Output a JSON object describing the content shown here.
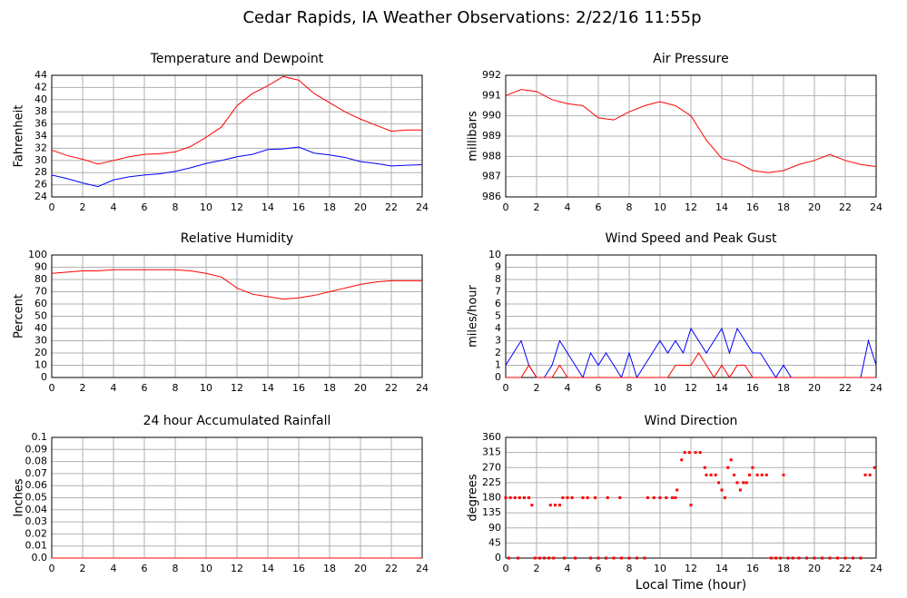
{
  "title": "Cedar Rapids, IA Weather Observations: 2/22/16 11:55p",
  "chart_data": [
    {
      "type": "line",
      "title": "Temperature and Dewpoint",
      "ylabel": "Fahrenheit",
      "x": [
        0,
        1,
        2,
        3,
        4,
        5,
        6,
        7,
        8,
        9,
        10,
        11,
        12,
        13,
        14,
        15,
        16,
        17,
        18,
        19,
        20,
        21,
        22,
        23,
        24
      ],
      "series": [
        {
          "color": "#ff0000",
          "values": [
            31.7,
            30.8,
            30.2,
            29.4,
            30.0,
            30.6,
            31.0,
            31.1,
            31.4,
            32.3,
            33.8,
            35.5,
            39.0,
            41.0,
            42.3,
            43.8,
            43.2,
            41.0,
            39.5,
            38.0,
            36.8,
            35.8,
            34.8,
            35.0,
            35.0
          ]
        },
        {
          "color": "#0000ff",
          "values": [
            27.6,
            27.0,
            26.3,
            25.7,
            26.8,
            27.3,
            27.6,
            27.8,
            28.2,
            28.8,
            29.5,
            30.0,
            30.6,
            31.0,
            31.8,
            31.9,
            32.2,
            31.2,
            30.9,
            30.5,
            29.8,
            29.5,
            29.1,
            29.2,
            29.3
          ]
        }
      ],
      "xlim": [
        0,
        24
      ],
      "xticks": [
        0,
        2,
        4,
        6,
        8,
        10,
        12,
        14,
        16,
        18,
        20,
        22,
        24
      ],
      "ylim": [
        24,
        44
      ],
      "yticks": [
        24,
        26,
        28,
        30,
        32,
        34,
        36,
        38,
        40,
        42,
        44
      ],
      "grid": true
    },
    {
      "type": "line",
      "title": "Air Pressure",
      "ylabel": "millibars",
      "x": [
        0,
        1,
        2,
        3,
        4,
        5,
        6,
        7,
        8,
        9,
        10,
        11,
        12,
        13,
        14,
        15,
        16,
        17,
        18,
        19,
        20,
        21,
        22,
        23,
        24
      ],
      "series": [
        {
          "color": "#ff0000",
          "values": [
            991.0,
            991.3,
            991.2,
            990.8,
            990.6,
            990.5,
            989.9,
            989.8,
            990.2,
            990.5,
            990.7,
            990.5,
            990.0,
            988.8,
            987.9,
            987.7,
            987.3,
            987.2,
            987.3,
            987.6,
            987.8,
            988.1,
            987.8,
            987.6,
            987.5
          ]
        }
      ],
      "xlim": [
        0,
        24
      ],
      "xticks": [
        0,
        2,
        4,
        6,
        8,
        10,
        12,
        14,
        16,
        18,
        20,
        22,
        24
      ],
      "ylim": [
        986,
        992
      ],
      "yticks": [
        986,
        987,
        988,
        989,
        990,
        991,
        992
      ],
      "grid": true
    },
    {
      "type": "line",
      "title": "Relative Humidity",
      "ylabel": "Percent",
      "x": [
        0,
        1,
        2,
        3,
        4,
        5,
        6,
        7,
        8,
        9,
        10,
        11,
        12,
        13,
        14,
        15,
        16,
        17,
        18,
        19,
        20,
        21,
        22,
        23,
        24
      ],
      "series": [
        {
          "color": "#ff0000",
          "values": [
            85,
            86,
            87,
            87,
            88,
            88,
            88,
            88,
            88,
            87,
            85,
            82,
            73,
            68,
            66,
            64,
            65,
            67,
            70,
            73,
            76,
            78,
            79,
            79,
            79
          ]
        }
      ],
      "xlim": [
        0,
        24
      ],
      "xticks": [
        0,
        2,
        4,
        6,
        8,
        10,
        12,
        14,
        16,
        18,
        20,
        22,
        24
      ],
      "ylim": [
        0,
        100
      ],
      "yticks": [
        0,
        10,
        20,
        30,
        40,
        50,
        60,
        70,
        80,
        90,
        100
      ],
      "grid": true
    },
    {
      "type": "line",
      "title": "Wind Speed and Peak Gust",
      "ylabel": "miles/hour",
      "x": [
        0,
        0.5,
        1,
        1.5,
        2,
        2.5,
        3,
        3.5,
        4,
        4.5,
        5,
        5.5,
        6,
        6.5,
        7,
        7.5,
        8,
        8.5,
        9,
        9.5,
        10,
        10.5,
        11,
        11.5,
        12,
        12.5,
        13,
        13.5,
        14,
        14.5,
        15,
        15.5,
        16,
        16.5,
        17,
        17.5,
        18,
        18.5,
        19,
        19.5,
        20,
        20.5,
        21,
        21.5,
        22,
        22.5,
        23,
        23.5,
        24
      ],
      "series": [
        {
          "color": "#0000ff",
          "values": [
            1,
            2,
            3,
            1,
            0,
            0,
            1,
            3,
            2,
            1,
            0,
            2,
            1,
            2,
            1,
            0,
            2,
            0,
            1,
            2,
            3,
            2,
            3,
            2,
            4,
            3,
            2,
            3,
            4,
            2,
            4,
            3,
            2,
            2,
            1,
            0,
            1,
            0,
            0,
            0,
            0,
            0,
            0,
            0,
            0,
            0,
            0,
            3,
            1
          ]
        },
        {
          "color": "#ff0000",
          "values": [
            0,
            0,
            0,
            1,
            0,
            0,
            0,
            1,
            0,
            0,
            0,
            0,
            0,
            0,
            0,
            0,
            0,
            0,
            0,
            0,
            0,
            0,
            1,
            1,
            1,
            2,
            1,
            0,
            1,
            0,
            1,
            1,
            0,
            0,
            0,
            0,
            0,
            0,
            0,
            0,
            0,
            0,
            0,
            0,
            0,
            0,
            0,
            0,
            0
          ]
        }
      ],
      "xlim": [
        0,
        24
      ],
      "xticks": [
        0,
        2,
        4,
        6,
        8,
        10,
        12,
        14,
        16,
        18,
        20,
        22,
        24
      ],
      "ylim": [
        0,
        10
      ],
      "yticks": [
        0,
        1,
        2,
        3,
        4,
        5,
        6,
        7,
        8,
        9,
        10
      ],
      "grid": true
    },
    {
      "type": "line",
      "title": "24 hour Accumulated Rainfall",
      "ylabel": "Inches",
      "x": [
        0,
        24
      ],
      "series": [
        {
          "color": "#ff0000",
          "values": [
            0,
            0
          ]
        }
      ],
      "xlim": [
        0,
        24
      ],
      "xticks": [
        0,
        2,
        4,
        6,
        8,
        10,
        12,
        14,
        16,
        18,
        20,
        22,
        24
      ],
      "ylim": [
        0,
        0.1
      ],
      "yticks": [
        {
          "value": 0,
          "label": "0.0"
        },
        0.01,
        0.02,
        0.03,
        0.04,
        0.05,
        0.06,
        0.07,
        0.08,
        0.09,
        0.1
      ],
      "grid": true
    },
    {
      "type": "scatter",
      "title": "Wind Direction",
      "ylabel": "degrees",
      "xlabel": "Local Time (hour)",
      "x": [
        0,
        0.3,
        0.6,
        0.9,
        1.2,
        1.5,
        0.2,
        0.8,
        1.7,
        1.9,
        2.2,
        2.5,
        2.8,
        3.1,
        2.9,
        3.2,
        3.5,
        3.7,
        4.0,
        4.3,
        3.8,
        4.5,
        5.0,
        5.3,
        5.5,
        6.0,
        6.5,
        7.0,
        7.5,
        8.0,
        5.8,
        6.6,
        7.4,
        8.5,
        9.0,
        9.2,
        9.6,
        10.0,
        10.4,
        10.8,
        11.0,
        11.1,
        11.4,
        11.6,
        11.9,
        12.0,
        12.3,
        12.6,
        12.9,
        13.0,
        13.3,
        13.6,
        13.8,
        14.0,
        14.2,
        14.4,
        14.6,
        14.8,
        15.0,
        15.2,
        15.4,
        15.6,
        15.8,
        16.0,
        16.3,
        16.6,
        16.9,
        17.2,
        17.5,
        17.8,
        18.0,
        18.3,
        18.6,
        19.0,
        19.5,
        20.0,
        20.5,
        21.0,
        21.5,
        22.0,
        22.5,
        23.0,
        23.3,
        23.6,
        23.9
      ],
      "values": [
        180,
        180,
        180,
        180,
        180,
        180,
        0,
        0,
        158,
        0,
        0,
        0,
        0,
        0,
        158,
        158,
        158,
        180,
        180,
        180,
        0,
        0,
        180,
        180,
        0,
        0,
        0,
        0,
        0,
        0,
        180,
        180,
        180,
        0,
        0,
        180,
        180,
        180,
        180,
        180,
        180,
        203,
        293,
        315,
        315,
        158,
        315,
        315,
        270,
        248,
        248,
        248,
        225,
        203,
        180,
        270,
        293,
        248,
        225,
        203,
        225,
        225,
        248,
        270,
        248,
        248,
        248,
        0,
        0,
        0,
        248,
        0,
        0,
        0,
        0,
        0,
        0,
        0,
        0,
        0,
        0,
        0,
        248,
        248,
        270
      ],
      "color": "#ff0000",
      "xlim": [
        0,
        24
      ],
      "xticks": [
        0,
        2,
        4,
        6,
        8,
        10,
        12,
        14,
        16,
        18,
        20,
        22,
        24
      ],
      "ylim": [
        0,
        360
      ],
      "yticks": [
        0,
        45,
        90,
        135,
        180,
        225,
        270,
        315,
        360
      ],
      "grid": true
    }
  ]
}
